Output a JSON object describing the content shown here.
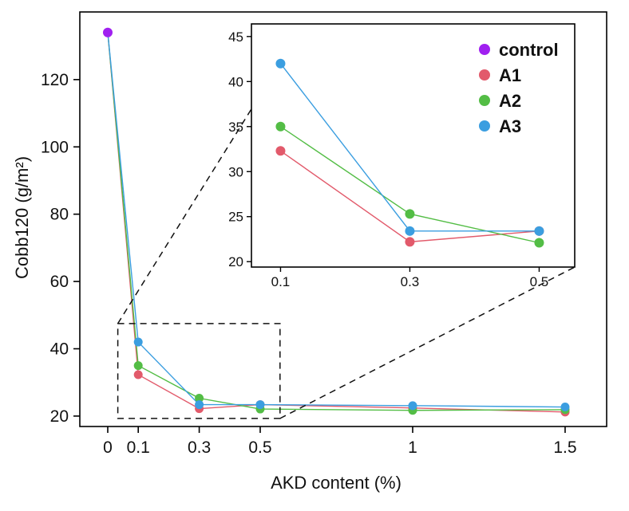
{
  "chart_data": {
    "type": "line",
    "title": "",
    "xlabel": "AKD content (%)",
    "ylabel": "Cobb120 (g/m²)",
    "background": "#ffffff",
    "axis_color": "#000000",
    "text_color": "#111111",
    "main_axes": {
      "xlim": [
        -0.0916,
        1.6362
      ],
      "ylim": [
        16.9,
        140.1
      ],
      "xtick_values": [
        0,
        0.1,
        0.3,
        0.5,
        1,
        1.5
      ],
      "xtick_labels": [
        "0",
        "0.1",
        "0.3",
        "0.5",
        "1",
        "1.5"
      ],
      "ytick_values": [
        20,
        40,
        60,
        80,
        100,
        120
      ],
      "ytick_labels": [
        "20",
        "40",
        "60",
        "80",
        "100",
        "120"
      ],
      "grid": false
    },
    "inset_axes": {
      "xlim": [
        0.055,
        0.555
      ],
      "ylim": [
        19.4,
        46.4
      ],
      "xtick_values": [
        0.1,
        0.3,
        0.5
      ],
      "xtick_labels": [
        "0.1",
        "0.3",
        "0.5"
      ],
      "ytick_values": [
        20,
        25,
        30,
        35,
        40,
        45
      ],
      "ytick_labels": [
        "20",
        "25",
        "30",
        "35",
        "40",
        "45"
      ],
      "grid": false
    },
    "series": [
      {
        "name": "control",
        "color": "#a020f0",
        "x": [
          0
        ],
        "y": [
          134
        ]
      },
      {
        "name": "A1",
        "color": "#e25a6b",
        "x": [
          0,
          0.1,
          0.3,
          0.5,
          1,
          1.5
        ],
        "y": [
          134,
          32.3,
          22.2,
          23.4,
          22.4,
          21.2
        ]
      },
      {
        "name": "A2",
        "color": "#53bd45",
        "x": [
          0,
          0.1,
          0.3,
          0.5,
          1,
          1.5
        ],
        "y": [
          134,
          35.0,
          25.3,
          22.1,
          21.7,
          21.9
        ]
      },
      {
        "name": "A3",
        "color": "#3b9ee0",
        "x": [
          0,
          0.1,
          0.3,
          0.5,
          1,
          1.5
        ],
        "y": [
          134,
          42.0,
          23.4,
          23.4,
          23.1,
          22.7
        ]
      }
    ],
    "legend": {
      "position": "inset-top-right",
      "entries": [
        "control",
        "A1",
        "A2",
        "A3"
      ]
    },
    "zoom_rect": {
      "x0": 0.033,
      "x1": 0.565,
      "y0": 19.3,
      "y1": 47.5
    }
  }
}
